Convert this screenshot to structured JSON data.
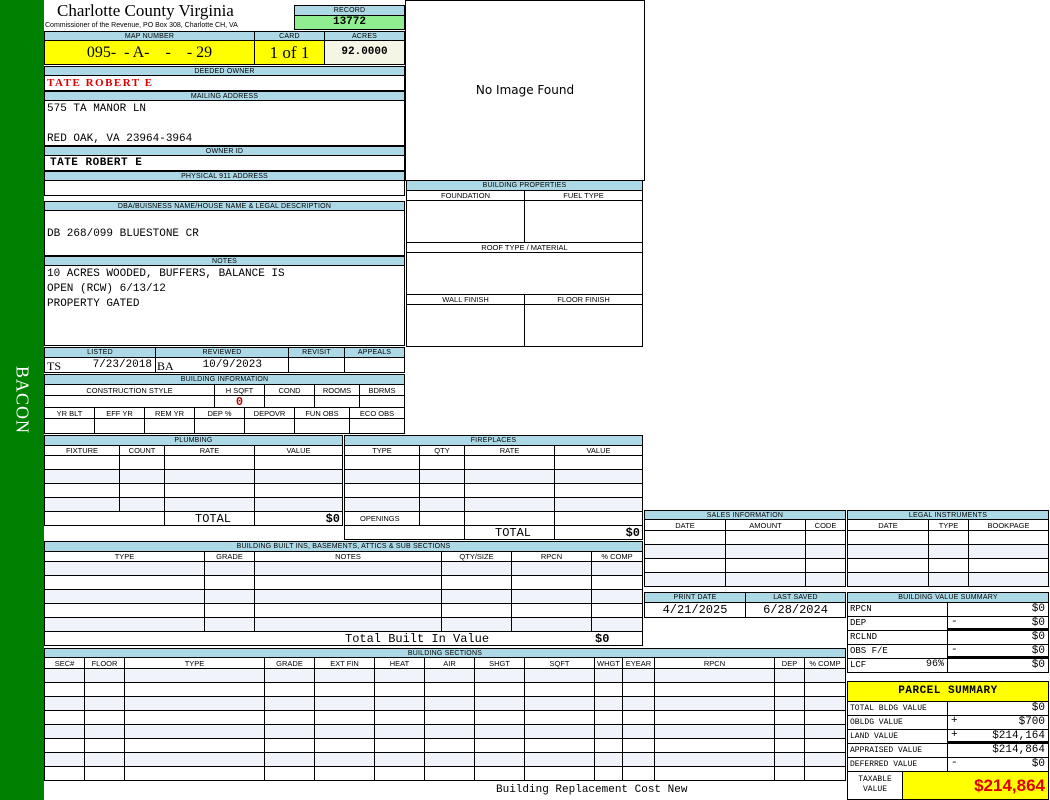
{
  "sidebar": {
    "label": "BACON",
    "color": "#008000"
  },
  "header": {
    "title": "Charlotte County Virginia",
    "subtitle": "Commissioner of the Revenue, PO Box 308, Charlotte CH, VA"
  },
  "record": {
    "label": "RECORD",
    "value": "13772"
  },
  "map": {
    "label": "MAP NUMBER",
    "value": "095-  - A-    -    - 29"
  },
  "card": {
    "label": "CARD",
    "value": "1 of 1"
  },
  "acres": {
    "label": "ACRES",
    "value": "92.0000"
  },
  "image": {
    "text": "No Image Found"
  },
  "deeded_owner": {
    "label": "DEEDED OWNER",
    "value": "TATE ROBERT E"
  },
  "mailing": {
    "label": "MAILING ADDRESS",
    "line1": "575 TA MANOR LN",
    "line2": "RED OAK, VA 23964-3964"
  },
  "owner_id": {
    "label": "OWNER ID",
    "value": "TATE ROBERT E"
  },
  "physical": {
    "label": "PHYSICAL 911 ADDRESS",
    "value": ""
  },
  "dba": {
    "label": "DBA/BUISNESS NAME/HOUSE NAME & LEGAL DESCRIPTION",
    "value": "DB 268/099 BLUESTONE CR"
  },
  "notes": {
    "label": "NOTES",
    "lines": [
      "10 ACRES WOODED, BUFFERS, BALANCE IS",
      "OPEN (RCW) 6/13/12",
      "PROPERTY GATED"
    ]
  },
  "review": {
    "listed_label": "LISTED",
    "listed_by": "TS",
    "listed_date": "7/23/2018",
    "reviewed_label": "REVIEWED",
    "reviewed_by": "BA",
    "reviewed_date": "10/9/2023",
    "revisit_label": "REVISIT",
    "appeals_label": "APPEALS"
  },
  "building_info": {
    "label": "BUILDING INFORMATION",
    "row1": [
      "CONSTRUCTION STYLE",
      "H SQFT",
      "COND",
      "ROOMS",
      "BDRMS"
    ],
    "hsqft": "0",
    "row2": [
      "YR BLT",
      "EFF YR",
      "REM YR",
      "DEP %",
      "DEPOVR",
      "FUN OBS",
      "ECO OBS"
    ]
  },
  "building_props": {
    "label": "BUILDING PROPERTIES",
    "foundation": "FOUNDATION",
    "fuel": "FUEL TYPE",
    "roof": "ROOF TYPE / MATERIAL",
    "wall": "WALL FINISH",
    "floor": "FLOOR FINISH"
  },
  "plumbing": {
    "label": "PLUMBING",
    "columns": [
      "FIXTURE",
      "COUNT",
      "RATE",
      "VALUE"
    ],
    "total_label": "TOTAL",
    "total": "$0"
  },
  "fireplaces": {
    "label": "FIREPLACES",
    "columns": [
      "TYPE",
      "QTY",
      "RATE",
      "VALUE"
    ],
    "openings_label": "OPENINGS",
    "total_label": "TOTAL",
    "total": "$0"
  },
  "builtins": {
    "label": "BUILDING BUILT INS, BASEMENTS, ATTICS & SUB SECTIONS",
    "columns": [
      "TYPE",
      "GRADE",
      "NOTES",
      "QTY/SIZE",
      "RPCN",
      "% COMP"
    ],
    "total_label": "Total Built In Value",
    "total": "$0"
  },
  "sections": {
    "label": "BUILDING SECTIONS",
    "columns": [
      "SEC#",
      "FLOOR",
      "TYPE",
      "GRADE",
      "EXT FIN",
      "HEAT",
      "AIR",
      "SHGT",
      "SQFT",
      "WHGT",
      "EYEAR",
      "RPCN",
      "DEP",
      "% COMP"
    ],
    "footer": "Building Replacement Cost New"
  },
  "sales": {
    "label": "SALES INFORMATION",
    "columns": [
      "DATE",
      "AMOUNT",
      "CODE"
    ]
  },
  "legal": {
    "label": "LEGAL INSTRUMENTS",
    "columns": [
      "DATE",
      "TYPE",
      "BOOKPAGE"
    ]
  },
  "dates": {
    "print_label": "PRINT DATE",
    "print_value": "4/21/2025",
    "saved_label": "LAST SAVED",
    "saved_value": "6/28/2024"
  },
  "bvs": {
    "label": "BUILDING VALUE SUMMARY",
    "rows": [
      {
        "label": "RPCN",
        "sign": "",
        "value": "$0",
        "extra": ""
      },
      {
        "label": "DEP",
        "sign": "-",
        "value": "$0",
        "extra": ""
      },
      {
        "label": "RCLND",
        "sign": "",
        "value": "$0",
        "extra": ""
      },
      {
        "label": "OBS F/E",
        "sign": "-",
        "value": "$0",
        "extra": ""
      },
      {
        "label": "LCF",
        "sign": "",
        "value": "$0",
        "extra": "96%"
      }
    ]
  },
  "parcel": {
    "label": "PARCEL SUMMARY",
    "rows": [
      {
        "label": "TOTAL BLDG VALUE",
        "sign": "",
        "value": "$0"
      },
      {
        "label": "OBLDG VALUE",
        "sign": "+",
        "value": "$700"
      },
      {
        "label": "LAND VALUE",
        "sign": "+",
        "value": "$214,164"
      },
      {
        "label": "APPRAISED VALUE",
        "sign": "",
        "value": "$214,864"
      },
      {
        "label": "DEFERRED VALUE",
        "sign": "-",
        "value": "$0"
      }
    ],
    "taxable_label": "TAXABLE VALUE",
    "taxable_value": "$214,864"
  }
}
